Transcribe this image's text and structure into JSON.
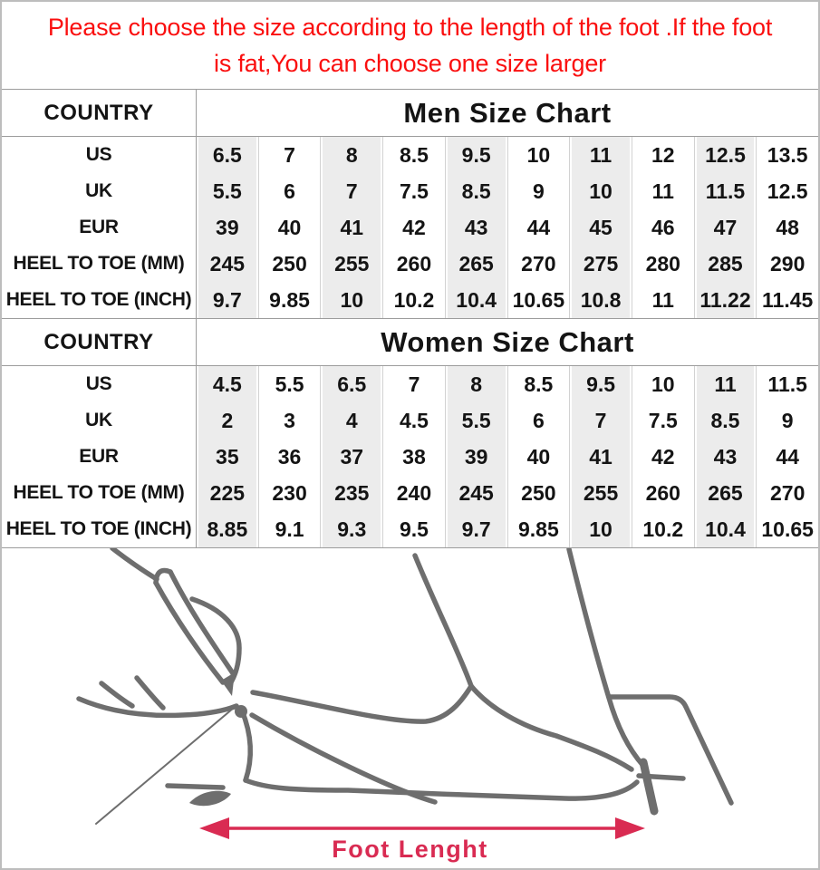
{
  "notice": {
    "line1": "Please choose the size according to the length of the foot .If the foot",
    "line2": "is fat,You can choose one size larger"
  },
  "men_table": {
    "country_header": "COUNTRY",
    "title": "Men Size Chart",
    "rows": [
      {
        "label": "US",
        "values": [
          "6.5",
          "7",
          "8",
          "8.5",
          "9.5",
          "10",
          "11",
          "12",
          "12.5",
          "13.5"
        ]
      },
      {
        "label": "UK",
        "values": [
          "5.5",
          "6",
          "7",
          "7.5",
          "8.5",
          "9",
          "10",
          "11",
          "11.5",
          "12.5"
        ]
      },
      {
        "label": "EUR",
        "values": [
          "39",
          "40",
          "41",
          "42",
          "43",
          "44",
          "45",
          "46",
          "47",
          "48"
        ]
      },
      {
        "label": "HEEL TO TOE (MM)",
        "values": [
          "245",
          "250",
          "255",
          "260",
          "265",
          "270",
          "275",
          "280",
          "285",
          "290"
        ]
      },
      {
        "label": "HEEL TO TOE (INCH)",
        "values": [
          "9.7",
          "9.85",
          "10",
          "10.2",
          "10.4",
          "10.65",
          "10.8",
          "11",
          "11.22",
          "11.45"
        ]
      }
    ]
  },
  "women_table": {
    "country_header": "COUNTRY",
    "title": "Women Size Chart",
    "rows": [
      {
        "label": "US",
        "values": [
          "4.5",
          "5.5",
          "6.5",
          "7",
          "8",
          "8.5",
          "9.5",
          "10",
          "11",
          "11.5"
        ]
      },
      {
        "label": "UK",
        "values": [
          "2",
          "3",
          "4",
          "4.5",
          "5.5",
          "6",
          "7",
          "7.5",
          "8.5",
          "9"
        ]
      },
      {
        "label": "EUR",
        "values": [
          "35",
          "36",
          "37",
          "38",
          "39",
          "40",
          "41",
          "42",
          "43",
          "44"
        ]
      },
      {
        "label": "HEEL TO TOE (MM)",
        "values": [
          "225",
          "230",
          "235",
          "240",
          "245",
          "250",
          "255",
          "260",
          "265",
          "270"
        ]
      },
      {
        "label": "HEEL TO TOE (INCH)",
        "values": [
          "8.85",
          "9.1",
          "9.3",
          "9.5",
          "9.7",
          "9.85",
          "10",
          "10.2",
          "10.4",
          "10.65"
        ]
      }
    ]
  },
  "diagram": {
    "label": "Foot Lenght"
  },
  "colors": {
    "notice_red": "#fa0f0f",
    "accent_crimson": "#d92b52",
    "shaded_column": "#ececec",
    "sketch_gray": "#6e6e6e",
    "table_border": "#9c9c9c"
  }
}
